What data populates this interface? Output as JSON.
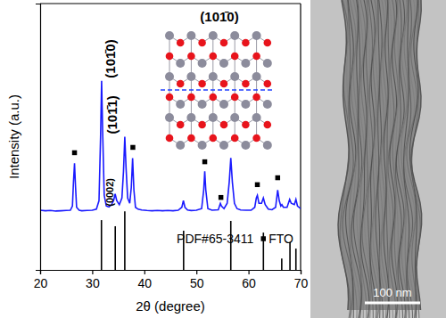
{
  "chart_data": {
    "type": "line",
    "x_label": "2θ (degree)",
    "y_label": "Intensity (a.u.)",
    "xlim": [
      20,
      70
    ],
    "ylim": [
      0,
      100
    ],
    "xticks": [
      20,
      30,
      40,
      50,
      60,
      70
    ],
    "yticks": [],
    "tick_labels": "x",
    "grid": false,
    "legend": "lower right",
    "series": [
      {
        "type": "line",
        "color": "#1a1aff",
        "x": [
          20,
          21,
          22,
          23,
          24,
          25,
          25.8,
          26.2,
          26.4,
          26.6,
          26.8,
          27.0,
          27.5,
          28,
          29,
          30,
          30.8,
          31.3,
          31.6,
          31.8,
          32.0,
          32.3,
          32.7,
          33.2,
          33.7,
          34.1,
          34.4,
          34.7,
          35.2,
          35.7,
          36.0,
          36.25,
          36.5,
          36.8,
          37.2,
          37.5,
          37.75,
          38.0,
          38.3,
          38.8,
          39.5,
          40.5,
          41.5,
          42.5,
          43.5,
          44.5,
          45.5,
          46.5,
          47.2,
          47.5,
          47.8,
          48.3,
          49,
          50,
          51.0,
          51.4,
          51.6,
          51.8,
          52.2,
          53,
          54.2,
          54.6,
          54.8,
          55.3,
          55.9,
          56.3,
          56.6,
          56.9,
          57.3,
          57.8,
          58.5,
          59.5,
          60.5,
          61.2,
          61.5,
          61.7,
          62.0,
          62.5,
          62.85,
          63.2,
          63.8,
          64.5,
          65.2,
          65.6,
          65.9,
          66.2,
          66.4,
          66.7,
          67.4,
          67.9,
          68.2,
          68.8,
          69.1,
          69.4,
          70
        ],
        "values": [
          22.4,
          22.2,
          22.3,
          22.1,
          22.2,
          22.3,
          22.4,
          24,
          33,
          40,
          31,
          23.5,
          22.4,
          22.2,
          22.3,
          22.4,
          22.8,
          26,
          50,
          71,
          52,
          28,
          24,
          23.6,
          24.5,
          26,
          28.5,
          26,
          24.5,
          27,
          37,
          50,
          38,
          27,
          25,
          31,
          42,
          30,
          23.5,
          22.8,
          22.5,
          22.3,
          22.2,
          22.3,
          22.2,
          22.3,
          22.2,
          22.4,
          23.5,
          26,
          23.5,
          22.5,
          22.3,
          22.4,
          23,
          30,
          37,
          30,
          23,
          22.4,
          22.6,
          25,
          24,
          23,
          25,
          33,
          42,
          33,
          25,
          23,
          22.5,
          22.4,
          22.4,
          23.5,
          27,
          28,
          25,
          25,
          27,
          24.5,
          22.8,
          22.6,
          23.5,
          30,
          26,
          24,
          24.5,
          23.5,
          23.5,
          26.5,
          25,
          24.5,
          26.5,
          24,
          23
        ]
      },
      {
        "name": "PDF#65-3411",
        "type": "bar",
        "color": "#000000",
        "x": [
          31.77,
          34.42,
          36.25,
          47.54,
          56.6,
          62.86,
          66.38,
          67.96,
          69.1
        ],
        "values": [
          18.7,
          16.4,
          22,
          14.7,
          18.4,
          14,
          4.3,
          10.4,
          8
        ]
      },
      {
        "name": "FTO",
        "type": "scatter",
        "marker": "square",
        "color": "#000000",
        "x": [
          26.6,
          37.8,
          51.6,
          54.7,
          61.7,
          65.6
        ],
        "values": [
          44,
          46,
          40.6,
          27.2,
          32,
          34.6
        ]
      }
    ],
    "annotations": [
      {
        "text": "(101̄0)",
        "x": 31.8,
        "y": 71
      },
      {
        "text": "(0002)",
        "x": 34.4,
        "y": 28.5
      },
      {
        "text": "(101̄1)",
        "x": 36.25,
        "y": 50
      }
    ]
  },
  "inset": {
    "label": "(101̄0)"
  },
  "tem_image": {
    "scale_bar": "100 nm"
  }
}
